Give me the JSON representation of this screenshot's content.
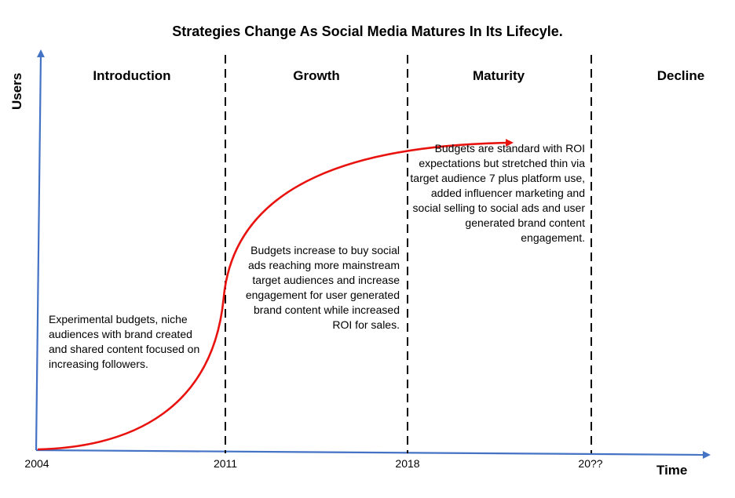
{
  "title": "Strategies Change As Social Media Matures In Its Lifecyle.",
  "axes": {
    "y_label": "Users",
    "x_label": "Time",
    "color": "#4472C4"
  },
  "phases": [
    "Introduction",
    "Growth",
    "Maturity",
    "Decline"
  ],
  "ticks": [
    "2004",
    "2011",
    "2018",
    "20??"
  ],
  "notes": {
    "introduction": "Experimental budgets, niche audiences with brand created and shared content focused on increasing followers.",
    "growth": "Budgets increase to buy social ads reaching more mainstream target audiences and increase engagement for user generated brand content while increased ROI for sales.",
    "maturity": "Budgets are standard with ROI expectations but stretched thin via target audience 7 plus platform use, added influencer marketing and social selling to social ads and user generated brand content engagement."
  },
  "curve": {
    "color": "#E8130F",
    "description_arrow": "arrow-head"
  },
  "divider_color": "#000000"
}
